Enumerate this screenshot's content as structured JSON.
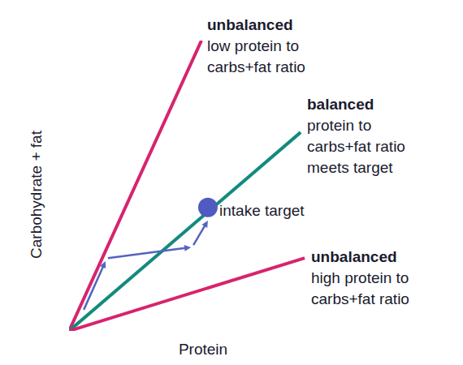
{
  "chart_data": {
    "type": "line",
    "tick_labels": false,
    "grid": false,
    "x_label": "Protein",
    "y_label": "Carbohydrate + fat",
    "xlim": [
      0,
      100
    ],
    "ylim": [
      0,
      100
    ],
    "xticks": [],
    "yticks": [],
    "series": [
      {
        "color": "#d6246e",
        "x": [
          0,
          49.4
        ],
        "values": [
          0,
          100
        ],
        "label_title": "unbalanced",
        "label_lines": [
          "low protein to",
          "carbs+fat ratio"
        ]
      },
      {
        "color": "#138a7e",
        "x": [
          0,
          86.4
        ],
        "values": [
          0,
          68.4
        ],
        "label_title": "balanced",
        "label_lines": [
          "protein to",
          "carbs+fat ratio",
          "meets target"
        ]
      },
      {
        "color": "#d6246e",
        "x": [
          0,
          87.9
        ],
        "values": [
          0,
          25.1
        ],
        "label_title": "unbalanced",
        "label_lines": [
          "high protein to",
          "carbs+fat ratio"
        ]
      }
    ],
    "target": {
      "x": 51.8,
      "y": 42.5,
      "label": "intake target",
      "color": "#4f5bbf"
    },
    "arrows": {
      "color": "#5563c1",
      "segments": [
        [
          [
            5.5,
            7.3
          ],
          [
            13.6,
            24.0
          ]
        ],
        [
          [
            14.5,
            25.1
          ],
          [
            45.5,
            28.8
          ]
        ],
        [
          [
            46.4,
            29.6
          ],
          [
            51.8,
            38.0
          ]
        ]
      ]
    }
  }
}
